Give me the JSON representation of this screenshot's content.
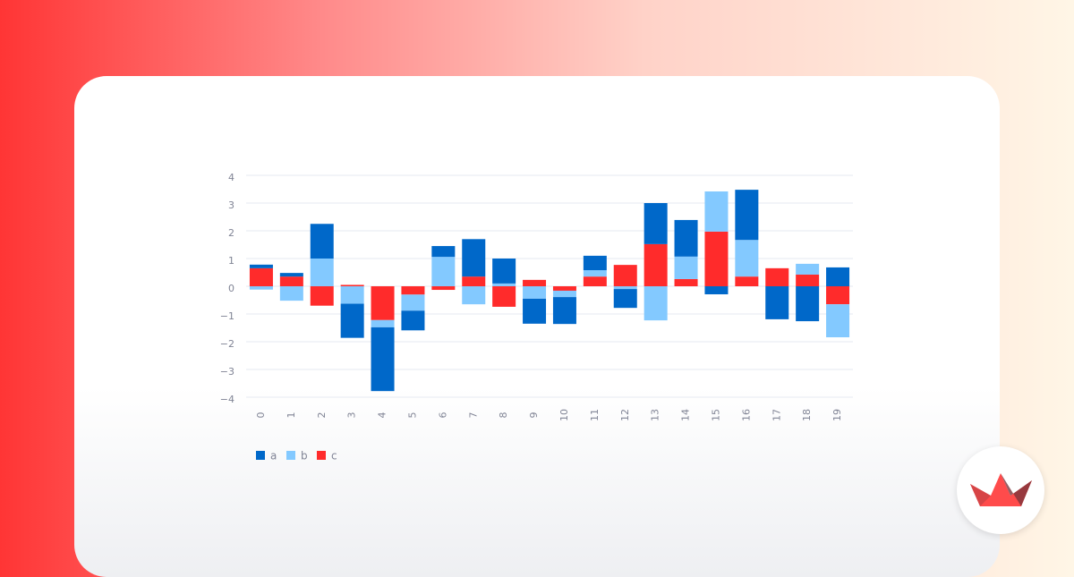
{
  "chart_data": {
    "type": "bar",
    "stacked": true,
    "categories": [
      "0",
      "1",
      "2",
      "3",
      "4",
      "5",
      "6",
      "7",
      "8",
      "9",
      "10",
      "11",
      "12",
      "13",
      "14",
      "15",
      "16",
      "17",
      "18",
      "19"
    ],
    "series": [
      {
        "name": "a",
        "color": "#0068c9",
        "values": [
          0.13,
          0.13,
          1.25,
          -1.23,
          -2.3,
          -0.71,
          0.39,
          1.35,
          0.9,
          -0.9,
          -0.97,
          0.52,
          -0.68,
          1.48,
          1.32,
          -0.29,
          1.81,
          -1.19,
          -1.26,
          0.68
        ]
      },
      {
        "name": "b",
        "color": "#83c9ff",
        "values": [
          -0.12,
          -0.52,
          1.0,
          -0.63,
          -0.26,
          -0.58,
          1.06,
          -0.65,
          0.1,
          -0.45,
          -0.23,
          0.23,
          -0.1,
          -1.23,
          0.81,
          1.45,
          1.32,
          0,
          0.39,
          -1.19
        ]
      },
      {
        "name": "c",
        "color": "#ff2b2b",
        "values": [
          0.65,
          0.35,
          -0.7,
          0.05,
          -1.22,
          -0.3,
          -0.13,
          0.35,
          -0.74,
          0.23,
          -0.16,
          0.35,
          0.77,
          1.52,
          0.26,
          1.97,
          0.35,
          0.65,
          0.42,
          -0.65
        ]
      }
    ],
    "ylim": [
      -4,
      4
    ],
    "yticks": [
      {
        "value": -4,
        "label": "−4"
      },
      {
        "value": -3,
        "label": "−3"
      },
      {
        "value": -2,
        "label": "−2"
      },
      {
        "value": -1,
        "label": "−1"
      },
      0,
      1,
      2,
      3,
      4
    ],
    "grid": true,
    "legend": "bottom-left"
  }
}
